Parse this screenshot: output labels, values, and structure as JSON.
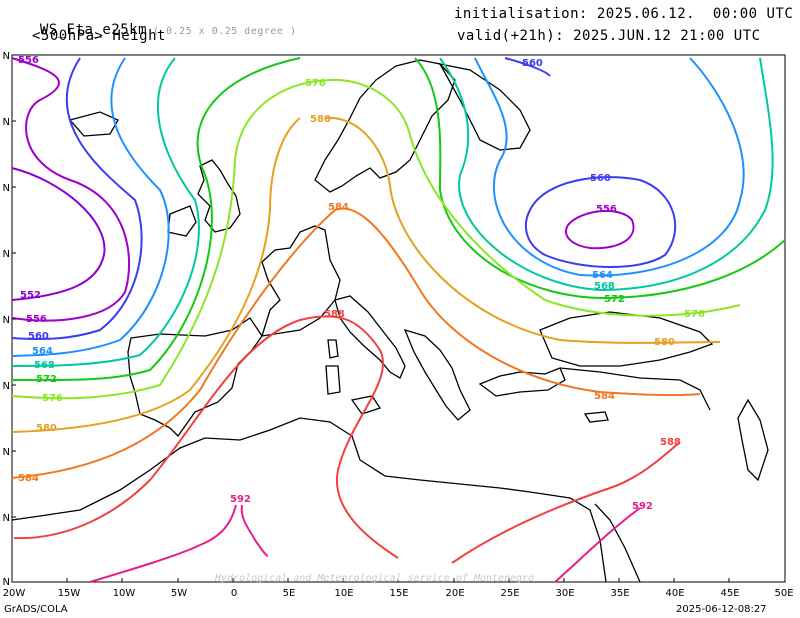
{
  "header": {
    "model": "WS_Eta_e25km",
    "resolution": "( 0.25 x 0.25 degree )",
    "field": "<500hPa> Height",
    "init": "initialisation: 2025.06.12.  00:00 UTC",
    "valid": "valid(+21h): 2025.JUN.12 21:00 UTC"
  },
  "footer": {
    "software": "GrADS/COLA",
    "timestamp": "2025-06-12-08:27",
    "watermark": "Hydrological and Meteorological service of Montenegro"
  },
  "axis": {
    "lon_labels": [
      "20W",
      "15W",
      "10W",
      "5W",
      "0",
      "5E",
      "10E",
      "15E",
      "20E",
      "25E",
      "30E",
      "35E",
      "40E",
      "45E",
      "50E"
    ],
    "lat_labels": [
      "N",
      "N",
      "N",
      "N",
      "N",
      "N",
      "N",
      "N",
      "N"
    ]
  },
  "contours": {
    "552": {
      "color": "#8a00d4",
      "labels": [
        "552"
      ]
    },
    "556": {
      "color": "#a000c8",
      "labels": [
        "556",
        "556",
        "556"
      ]
    },
    "560": {
      "color": "#3c3cf0",
      "labels": [
        "560",
        "560",
        "560"
      ]
    },
    "564": {
      "color": "#1e90ff",
      "labels": [
        "564",
        "564"
      ]
    },
    "568": {
      "color": "#00c8a0",
      "labels": [
        "568",
        "568"
      ]
    },
    "572": {
      "color": "#14c814",
      "labels": [
        "572",
        "572"
      ]
    },
    "576": {
      "color": "#8ce628",
      "labels": [
        "576",
        "576",
        "576"
      ]
    },
    "580": {
      "color": "#e6a020",
      "labels": [
        "580",
        "580",
        "580"
      ]
    },
    "584": {
      "color": "#f07820",
      "labels": [
        "584",
        "584",
        "584"
      ]
    },
    "588": {
      "color": "#f04040",
      "labels": [
        "588",
        "588"
      ]
    },
    "592": {
      "color": "#e61e8c",
      "labels": [
        "592",
        "592"
      ]
    }
  }
}
